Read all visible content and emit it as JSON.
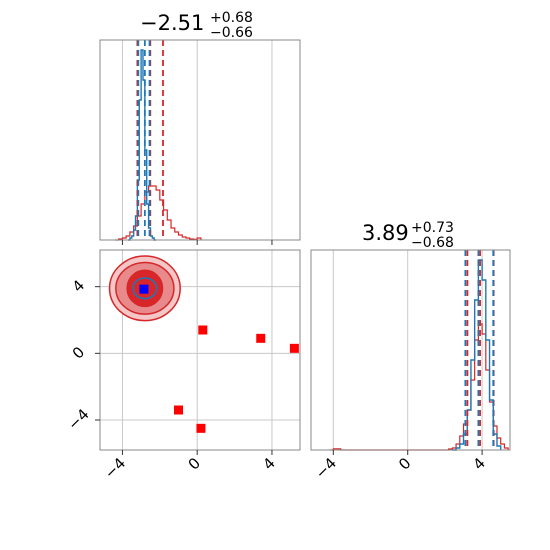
{
  "chart_data": {
    "type": "corner",
    "x_range": [
      -5.2,
      5.5
    ],
    "y_range": [
      -5.8,
      6.2
    ],
    "ticks": [
      -4,
      0,
      4
    ],
    "tick_labels": [
      "−4",
      "0",
      "4"
    ],
    "grid": true,
    "colors": {
      "hist_a": "#1f77b4",
      "hist_b": "#d62728",
      "marker": "#ff0000",
      "truth": "#0000ff",
      "frame": "#888888",
      "grid": "#c8c8c8"
    },
    "param1": {
      "title_value": "−2.51",
      "title_upper": "+0.68",
      "title_lower": "−0.66",
      "hist_a": {
        "x": [
          -3.7,
          -3.6,
          -3.5,
          -3.4,
          -3.3,
          -3.2,
          -3.1,
          -3.0,
          -2.9,
          -2.8,
          -2.7,
          -2.6,
          -2.5,
          -2.4,
          -2.3,
          -2.2
        ],
        "y": [
          0.0,
          0.01,
          0.02,
          0.05,
          0.12,
          0.3,
          0.7,
          0.95,
          0.8,
          0.45,
          0.18,
          0.06,
          0.02,
          0.01,
          0.0,
          0.0
        ]
      },
      "hist_b": {
        "x": [
          -4.4,
          -4.2,
          -4.0,
          -3.8,
          -3.6,
          -3.4,
          -3.2,
          -3.0,
          -2.8,
          -2.6,
          -2.4,
          -2.2,
          -2.0,
          -1.8,
          -1.6,
          -1.4,
          -1.2,
          -1.0,
          -0.8,
          -0.6,
          -0.4,
          -0.2,
          0.0,
          0.2
        ],
        "y": [
          0.0,
          0.005,
          0.01,
          0.02,
          0.04,
          0.07,
          0.12,
          0.18,
          0.24,
          0.27,
          0.27,
          0.25,
          0.2,
          0.15,
          0.1,
          0.06,
          0.04,
          0.025,
          0.015,
          0.01,
          0.005,
          0.003,
          0.01,
          0.0
        ]
      },
      "quantiles_a": [
        -3.15,
        -2.8,
        -2.55
      ],
      "quantiles_b": [
        -3.2,
        -2.51,
        -1.83
      ]
    },
    "param2": {
      "title_value": "3.89",
      "title_upper": "+0.73",
      "title_lower": "−0.68",
      "hist_a": {
        "x": [
          2.4,
          2.6,
          2.8,
          3.0,
          3.2,
          3.4,
          3.6,
          3.8,
          4.0,
          4.2,
          4.4,
          4.6,
          4.8,
          5.0
        ],
        "y": [
          0.0,
          0.01,
          0.03,
          0.08,
          0.2,
          0.45,
          0.75,
          0.95,
          0.85,
          0.55,
          0.25,
          0.08,
          0.02,
          0.0
        ]
      },
      "hist_b": {
        "x": [
          -4.2,
          -4.0,
          -3.8,
          -3.6,
          2.0,
          2.2,
          2.4,
          2.6,
          2.8,
          3.0,
          3.2,
          3.4,
          3.6,
          3.8,
          4.0,
          4.2,
          4.4,
          4.6,
          4.8,
          5.0,
          5.2,
          5.4
        ],
        "y": [
          0.0,
          0.006,
          0.006,
          0.0,
          0.0,
          0.005,
          0.01,
          0.03,
          0.07,
          0.13,
          0.2,
          0.35,
          0.55,
          0.63,
          0.58,
          0.4,
          0.24,
          0.12,
          0.06,
          0.03,
          0.01,
          0.0
        ]
      },
      "quantiles_a": [
        3.1,
        3.8,
        4.6
      ],
      "quantiles_b": [
        3.21,
        3.89,
        4.62
      ]
    },
    "scatter_2d": {
      "center": [
        -2.8,
        3.9
      ],
      "contour_levels_b": [
        {
          "rx": 1.4,
          "ry": 1.25,
          "fill": "#f4c6c6"
        },
        {
          "rx": 1.15,
          "ry": 1.0,
          "fill": "#e8898b"
        },
        {
          "rx": 0.7,
          "ry": 0.7,
          "fill": "#d9262b"
        }
      ],
      "contour_a_radius": [
        0.45,
        0.4
      ],
      "markers": [
        [
          0.3,
          1.4
        ],
        [
          3.4,
          0.9
        ],
        [
          5.2,
          0.3
        ],
        [
          -1.0,
          -3.4
        ],
        [
          0.2,
          -4.5
        ]
      ],
      "truth": [
        -2.85,
        3.85
      ]
    }
  }
}
